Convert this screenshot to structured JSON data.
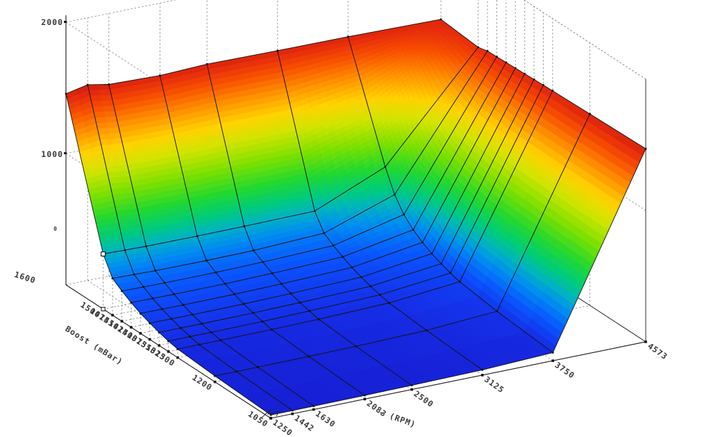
{
  "figure": {
    "background": "#ffffff",
    "z_axis": {
      "tick_labels": [
        "2000",
        "1000"
      ],
      "minor_mark": "0"
    },
    "boost_axis": {
      "title": "Boost (mBar)",
      "tick_labels": [
        "1600",
        "1500",
        "1475",
        "1450",
        "1425",
        "1400",
        "1375",
        "1350",
        "1325",
        "1300",
        "1200",
        "1050"
      ]
    },
    "rpm_axis": {
      "title": "- (RPM)",
      "tick_labels": [
        "1250",
        "1442",
        "1630",
        "2083",
        "2500",
        "3125",
        "3750",
        "4573"
      ]
    }
  },
  "chart_data": {
    "type": "surface",
    "title": "",
    "xlabel": "- (RPM)",
    "ylabel": "Boost (mBar)",
    "zlabel": "",
    "x_rpm": [
      1250,
      1442,
      1630,
      2083,
      2500,
      3125,
      3750,
      4573
    ],
    "y_boost": [
      1050,
      1200,
      1300,
      1325,
      1350,
      1375,
      1400,
      1425,
      1450,
      1475,
      1500,
      1600
    ],
    "z_values_rows_by_boost": [
      [
        25,
        25,
        26,
        28,
        32,
        40,
        62,
        1470
      ],
      [
        45,
        45,
        46,
        48,
        52,
        64,
        100,
        1458
      ],
      [
        65,
        65,
        66,
        68,
        74,
        88,
        140,
        1450
      ],
      [
        80,
        80,
        80,
        83,
        90,
        104,
        160,
        1447
      ],
      [
        100,
        100,
        99,
        102,
        108,
        122,
        185,
        1444
      ],
      [
        124,
        123,
        122,
        124,
        131,
        146,
        215,
        1441
      ],
      [
        152,
        151,
        150,
        152,
        158,
        174,
        255,
        1438
      ],
      [
        188,
        186,
        185,
        186,
        192,
        208,
        305,
        1435
      ],
      [
        230,
        228,
        226,
        226,
        232,
        248,
        375,
        1432
      ],
      [
        280,
        276,
        272,
        270,
        274,
        296,
        480,
        1429
      ],
      [
        420,
        415,
        412,
        410,
        412,
        418,
        645,
        1412
      ],
      [
        1455,
        1490,
        1460,
        1448,
        1462,
        1455,
        1452,
        1440
      ]
    ],
    "zlim": [
      0,
      2000
    ],
    "z_ticks": [
      1000,
      2000
    ],
    "grid": "dashed",
    "colormap": "jet",
    "color_scale_max": 1520,
    "colormap_stops": [
      [
        0.0,
        "#1818cc"
      ],
      [
        0.06,
        "#1530e8"
      ],
      [
        0.14,
        "#0a55ff"
      ],
      [
        0.22,
        "#008ef0"
      ],
      [
        0.28,
        "#00b4c0"
      ],
      [
        0.34,
        "#00cc7a"
      ],
      [
        0.42,
        "#22d830"
      ],
      [
        0.52,
        "#7ee000"
      ],
      [
        0.62,
        "#d2e400"
      ],
      [
        0.7,
        "#ffd200"
      ],
      [
        0.79,
        "#ff9000"
      ],
      [
        0.87,
        "#f85200"
      ],
      [
        0.93,
        "#e82e0c"
      ],
      [
        1.0,
        "#c01410"
      ]
    ],
    "mesh_color": "#141414",
    "selected_vertex": {
      "rpm": 1250,
      "boost": 1500
    },
    "selected_axis_tick": {
      "axis": "boost",
      "value": 1500
    }
  }
}
